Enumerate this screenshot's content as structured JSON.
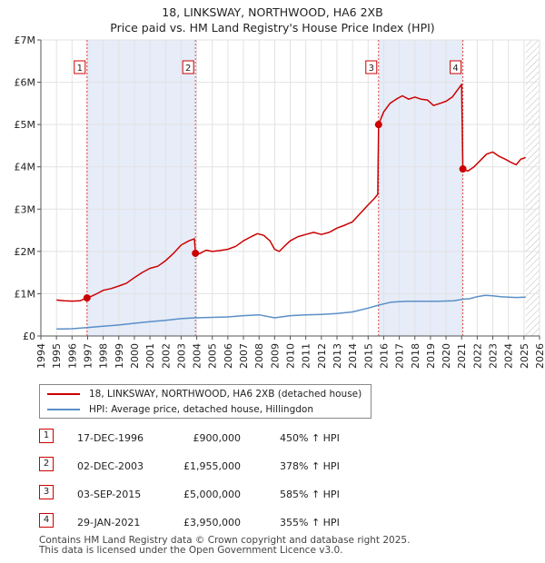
{
  "chart_data": {
    "type": "line",
    "title": "18, LINKSWAY, NORTHWOOD, HA6 2XB",
    "subtitle": "Price paid vs. HM Land Registry's House Price Index (HPI)",
    "xlim": [
      1994,
      2026
    ],
    "ylim": [
      0,
      7000000
    ],
    "x_ticks": [
      "1994",
      "1995",
      "1996",
      "1997",
      "1998",
      "1999",
      "2000",
      "2001",
      "2002",
      "2003",
      "2004",
      "2005",
      "2006",
      "2007",
      "2008",
      "2009",
      "2010",
      "2011",
      "2012",
      "2013",
      "2014",
      "2015",
      "2016",
      "2017",
      "2018",
      "2019",
      "2020",
      "2021",
      "2022",
      "2023",
      "2024",
      "2025",
      "2026"
    ],
    "y_ticks": [
      {
        "value": 0,
        "label": "£0"
      },
      {
        "value": 1000000,
        "label": "£1M"
      },
      {
        "value": 2000000,
        "label": "£2M"
      },
      {
        "value": 3000000,
        "label": "£3M"
      },
      {
        "value": 4000000,
        "label": "£4M"
      },
      {
        "value": 5000000,
        "label": "£5M"
      },
      {
        "value": 6000000,
        "label": "£6M"
      },
      {
        "value": 7000000,
        "label": "£7M"
      }
    ],
    "grid": true,
    "shaded_ranges": [
      [
        1996.96,
        2003.92
      ],
      [
        2015.67,
        2021.08
      ]
    ],
    "hatched_after": 2025.1,
    "series": [
      {
        "name": "18, LINKSWAY, NORTHWOOD, HA6 2XB (detached house)",
        "color": "#cc0000",
        "points": [
          [
            1995.0,
            850000
          ],
          [
            1995.5,
            830000
          ],
          [
            1996.0,
            825000
          ],
          [
            1996.5,
            830000
          ],
          [
            1996.96,
            900000
          ],
          [
            1997.3,
            950000
          ],
          [
            1997.7,
            1020000
          ],
          [
            1998.0,
            1080000
          ],
          [
            1998.5,
            1120000
          ],
          [
            1999.0,
            1180000
          ],
          [
            1999.5,
            1250000
          ],
          [
            2000.0,
            1380000
          ],
          [
            2000.5,
            1500000
          ],
          [
            2001.0,
            1600000
          ],
          [
            2001.5,
            1650000
          ],
          [
            2002.0,
            1780000
          ],
          [
            2002.5,
            1950000
          ],
          [
            2003.0,
            2150000
          ],
          [
            2003.5,
            2250000
          ],
          [
            2003.85,
            2300000
          ],
          [
            2003.92,
            1955000
          ],
          [
            2004.2,
            1950000
          ],
          [
            2004.6,
            2030000
          ],
          [
            2005.0,
            2000000
          ],
          [
            2005.5,
            2020000
          ],
          [
            2006.0,
            2050000
          ],
          [
            2006.5,
            2120000
          ],
          [
            2007.0,
            2250000
          ],
          [
            2007.5,
            2350000
          ],
          [
            2007.9,
            2420000
          ],
          [
            2008.3,
            2380000
          ],
          [
            2008.7,
            2250000
          ],
          [
            2009.0,
            2050000
          ],
          [
            2009.3,
            2000000
          ],
          [
            2009.7,
            2150000
          ],
          [
            2010.0,
            2250000
          ],
          [
            2010.5,
            2350000
          ],
          [
            2011.0,
            2400000
          ],
          [
            2011.5,
            2450000
          ],
          [
            2012.0,
            2400000
          ],
          [
            2012.5,
            2450000
          ],
          [
            2013.0,
            2550000
          ],
          [
            2013.5,
            2620000
          ],
          [
            2014.0,
            2700000
          ],
          [
            2014.5,
            2900000
          ],
          [
            2015.0,
            3100000
          ],
          [
            2015.4,
            3250000
          ],
          [
            2015.62,
            3350000
          ],
          [
            2015.67,
            5000000
          ],
          [
            2016.0,
            5300000
          ],
          [
            2016.4,
            5500000
          ],
          [
            2016.8,
            5600000
          ],
          [
            2017.2,
            5680000
          ],
          [
            2017.6,
            5600000
          ],
          [
            2018.0,
            5650000
          ],
          [
            2018.4,
            5600000
          ],
          [
            2018.8,
            5580000
          ],
          [
            2019.2,
            5450000
          ],
          [
            2019.6,
            5500000
          ],
          [
            2020.0,
            5550000
          ],
          [
            2020.4,
            5650000
          ],
          [
            2020.8,
            5850000
          ],
          [
            2021.0,
            5950000
          ],
          [
            2021.08,
            3950000
          ],
          [
            2021.4,
            3900000
          ],
          [
            2021.8,
            4000000
          ],
          [
            2022.2,
            4150000
          ],
          [
            2022.6,
            4300000
          ],
          [
            2023.0,
            4350000
          ],
          [
            2023.4,
            4250000
          ],
          [
            2023.8,
            4180000
          ],
          [
            2024.2,
            4100000
          ],
          [
            2024.5,
            4050000
          ],
          [
            2024.8,
            4180000
          ],
          [
            2025.1,
            4220000
          ]
        ]
      },
      {
        "name": "HPI: Average price, detached house, Hillingdon",
        "color": "#5a8fc7",
        "points": [
          [
            1995.0,
            165000
          ],
          [
            1995.5,
            168000
          ],
          [
            1996.0,
            172000
          ],
          [
            1996.96,
            200000
          ],
          [
            1998.0,
            230000
          ],
          [
            1999.0,
            260000
          ],
          [
            2000.0,
            300000
          ],
          [
            2001.0,
            340000
          ],
          [
            2002.0,
            370000
          ],
          [
            2003.0,
            410000
          ],
          [
            2003.92,
            430000
          ],
          [
            2005.0,
            440000
          ],
          [
            2006.0,
            450000
          ],
          [
            2007.0,
            480000
          ],
          [
            2008.0,
            500000
          ],
          [
            2009.0,
            430000
          ],
          [
            2010.0,
            480000
          ],
          [
            2011.0,
            500000
          ],
          [
            2012.0,
            510000
          ],
          [
            2013.0,
            530000
          ],
          [
            2014.0,
            570000
          ],
          [
            2015.0,
            660000
          ],
          [
            2015.67,
            730000
          ],
          [
            2016.5,
            800000
          ],
          [
            2017.5,
            820000
          ],
          [
            2018.5,
            820000
          ],
          [
            2019.5,
            820000
          ],
          [
            2020.5,
            830000
          ],
          [
            2021.08,
            870000
          ],
          [
            2021.5,
            880000
          ],
          [
            2022.0,
            930000
          ],
          [
            2022.5,
            960000
          ],
          [
            2023.0,
            950000
          ],
          [
            2023.5,
            930000
          ],
          [
            2024.0,
            920000
          ],
          [
            2024.5,
            910000
          ],
          [
            2025.1,
            920000
          ]
        ]
      }
    ],
    "annotations": [
      {
        "label": "1",
        "x": 1996.96,
        "y": 900000
      },
      {
        "label": "2",
        "x": 2003.92,
        "y": 1955000
      },
      {
        "label": "3",
        "x": 2015.67,
        "y": 5000000
      },
      {
        "label": "4",
        "x": 2021.08,
        "y": 3950000
      }
    ]
  },
  "legend": {
    "items": [
      {
        "label": "18, LINKSWAY, NORTHWOOD, HA6 2XB (detached house)",
        "color": "#cc0000"
      },
      {
        "label": "HPI: Average price, detached house, Hillingdon",
        "color": "#5a8fc7"
      }
    ]
  },
  "sales": [
    {
      "num": "1",
      "date": "17-DEC-1996",
      "price": "£900,000",
      "hpi": "450% ↑ HPI"
    },
    {
      "num": "2",
      "date": "02-DEC-2003",
      "price": "£1,955,000",
      "hpi": "378% ↑ HPI"
    },
    {
      "num": "3",
      "date": "03-SEP-2015",
      "price": "£5,000,000",
      "hpi": "585% ↑ HPI"
    },
    {
      "num": "4",
      "date": "29-JAN-2021",
      "price": "£3,950,000",
      "hpi": "355% ↑ HPI"
    }
  ],
  "footer": {
    "line1": "Contains HM Land Registry data © Crown copyright and database right 2025.",
    "line2": "This data is licensed under the Open Government Licence v3.0."
  }
}
